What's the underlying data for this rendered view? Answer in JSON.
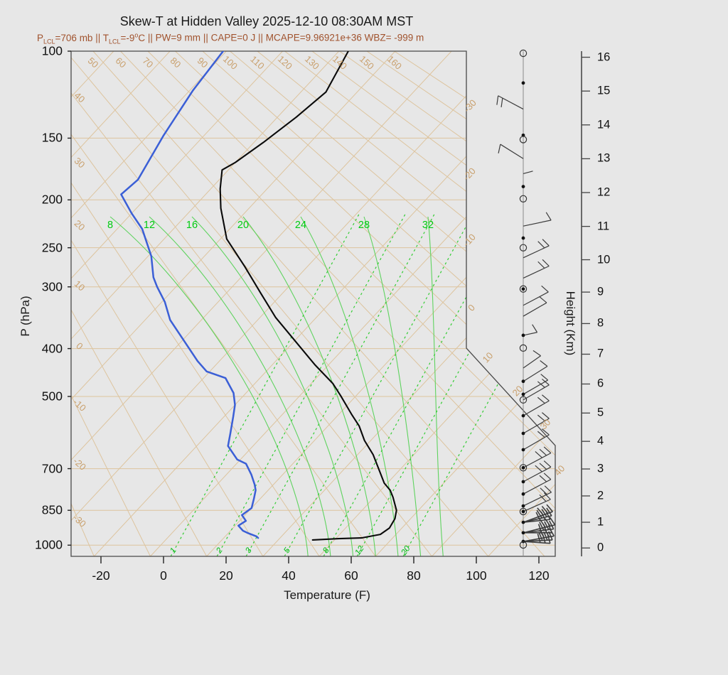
{
  "chart_data": {
    "type": "skewt-log-p-sounding",
    "title": "Skew-T at Hidden Valley 2025-12-10 08:30AM MST",
    "params": {
      "p_lcl_base": "P",
      "p_lcl_sub": "LCL",
      "p_lcl_val": "=706 mb",
      "sep": " || ",
      "t_lcl_base": "T",
      "t_lcl_sub": "LCL",
      "t_lcl_val": "=-9",
      "deg_sup": "o",
      "t_lcl_unit": "C",
      "pw": "PW=9 mm",
      "cape": "CAPE=0 J",
      "mcape_wbz": "MCAPE=9.96921e+36 WBZ= -999 m"
    },
    "axes": {
      "pressure": {
        "label": "P (hPa)",
        "units": "hPa",
        "ticks": [
          100,
          150,
          200,
          250,
          300,
          400,
          500,
          700,
          850,
          1000
        ],
        "range": [
          100,
          1050
        ],
        "scale": "log"
      },
      "temperature": {
        "label": "Temperature (F)",
        "units": "F",
        "ticks": [
          -20,
          0,
          20,
          40,
          60,
          80,
          100,
          120
        ]
      },
      "height": {
        "label": "Height (Km)",
        "units": "Km",
        "ticks": [
          0,
          1,
          2,
          3,
          4,
          5,
          6,
          7,
          8,
          9,
          10,
          11,
          12,
          13,
          14,
          15,
          16
        ]
      }
    },
    "grid": {
      "isotherm_step_c": 10,
      "isotherm_labels_right_c": [
        -30,
        -20,
        -10,
        0,
        10,
        20,
        30,
        40
      ],
      "dry_adiabat_labels_top_c": [
        50,
        60,
        70,
        80,
        90,
        100,
        110,
        120,
        130,
        140,
        150,
        160
      ],
      "dry_adiabat_labels_left_c": [
        40,
        30,
        20,
        10,
        0,
        -10,
        -20,
        -30
      ],
      "moist_adiabat_labels_c": [
        8,
        12,
        16,
        20,
        24,
        28,
        32
      ],
      "mixing_ratio_labels_gkg": [
        1,
        2,
        3,
        5,
        8,
        12,
        20
      ]
    },
    "temperature_curve_p_tf": [
      [
        100,
        -91
      ],
      [
        121,
        -86
      ],
      [
        136,
        -88
      ],
      [
        153,
        -91
      ],
      [
        168,
        -94
      ],
      [
        174,
        -96
      ],
      [
        190,
        -91
      ],
      [
        208,
        -85
      ],
      [
        240,
        -74
      ],
      [
        273,
        -60
      ],
      [
        309,
        -47
      ],
      [
        346,
        -35
      ],
      [
        395,
        -19
      ],
      [
        431,
        -8.5
      ],
      [
        471,
        3
      ],
      [
        498,
        9
      ],
      [
        543,
        18
      ],
      [
        574,
        24
      ],
      [
        614,
        30
      ],
      [
        656,
        37
      ],
      [
        701,
        43
      ],
      [
        749,
        49
      ],
      [
        774,
        53
      ],
      [
        800,
        56
      ],
      [
        850,
        61
      ],
      [
        884,
        63
      ],
      [
        923,
        64
      ],
      [
        951,
        63
      ],
      [
        967,
        58
      ],
      [
        970,
        51
      ],
      [
        976,
        43
      ]
    ],
    "dewpoint_curve_p_tf": [
      [
        100,
        -131
      ],
      [
        120,
        -129
      ],
      [
        148,
        -125
      ],
      [
        182,
        -120
      ],
      [
        195,
        -121
      ],
      [
        213,
        -112
      ],
      [
        229,
        -104
      ],
      [
        260,
        -93
      ],
      [
        287,
        -86
      ],
      [
        300,
        -82
      ],
      [
        322,
        -75
      ],
      [
        350,
        -68
      ],
      [
        380,
        -59
      ],
      [
        424,
        -47
      ],
      [
        445,
        -41
      ],
      [
        459,
        -33
      ],
      [
        492,
        -26
      ],
      [
        520,
        -22
      ],
      [
        550,
        -19
      ],
      [
        594,
        -15
      ],
      [
        630,
        -12
      ],
      [
        671,
        -5
      ],
      [
        684,
        -1
      ],
      [
        720,
        4
      ],
      [
        754,
        8
      ],
      [
        774,
        10
      ],
      [
        806,
        12
      ],
      [
        841,
        14
      ],
      [
        869,
        13
      ],
      [
        893,
        16
      ],
      [
        913,
        15
      ],
      [
        935,
        18
      ],
      [
        944,
        20
      ],
      [
        960,
        24
      ],
      [
        967,
        25
      ]
    ],
    "wind_barbs": [
      {
        "p": 131,
        "ang": -152,
        "ticks": 2,
        "len": 40
      },
      {
        "p": 165,
        "ang": -148,
        "ticks": 1,
        "len": 38
      },
      {
        "p": 177,
        "ang": -15,
        "ticks": 0,
        "len": 14
      },
      {
        "p": 226,
        "ang": -12,
        "ticks": 1,
        "len": 40
      },
      {
        "p": 262,
        "ang": -25,
        "ticks": 2,
        "len": 40
      },
      {
        "p": 288,
        "ang": -25,
        "ticks": 2,
        "len": 40
      },
      {
        "p": 327,
        "ang": -28,
        "ticks": 1,
        "len": 40
      },
      {
        "p": 344,
        "ang": -30,
        "ticks": 1,
        "len": 38
      },
      {
        "p": 376,
        "ang": -12,
        "ticks": 1,
        "len": 20
      },
      {
        "p": 438,
        "ang": -35,
        "ticks": 1,
        "len": 30
      },
      {
        "p": 466,
        "ang": -32,
        "ticks": 1,
        "len": 40
      },
      {
        "p": 495,
        "ang": -30,
        "ticks": 1,
        "len": 40
      },
      {
        "p": 508,
        "ang": -30,
        "ticks": 2,
        "len": 42
      },
      {
        "p": 547,
        "ang": -30,
        "ticks": 2,
        "len": 42
      },
      {
        "p": 594,
        "ang": -30,
        "ticks": 2,
        "len": 42
      },
      {
        "p": 641,
        "ang": -30,
        "ticks": 2,
        "len": 42
      },
      {
        "p": 697,
        "ang": -28,
        "ticks": 3,
        "len": 44
      },
      {
        "p": 744,
        "ang": -28,
        "ticks": 3,
        "len": 44
      },
      {
        "p": 788,
        "ang": -28,
        "ticks": 2,
        "len": 44
      },
      {
        "p": 833,
        "ang": -26,
        "ticks": 2,
        "len": 44
      },
      {
        "p": 855,
        "ang": -24,
        "ticks": 2,
        "len": 42
      },
      {
        "p": 899,
        "ang": -20,
        "ticks": 3,
        "len": 44,
        "heavy": true
      },
      {
        "p": 944,
        "ang": -14,
        "ticks": 3,
        "len": 46,
        "heavy": true
      },
      {
        "p": 983,
        "ang": -10,
        "ticks": 3,
        "len": 44,
        "heavy": true
      }
    ],
    "wind_symbols": [
      {
        "p": 101,
        "sym": "circle"
      },
      {
        "p": 116,
        "sym": "dot"
      },
      {
        "p": 148,
        "sym": "dot"
      },
      {
        "p": 151,
        "sym": "circle"
      },
      {
        "p": 188,
        "sym": "dot"
      },
      {
        "p": 199,
        "sym": "circle"
      },
      {
        "p": 239,
        "sym": "dot"
      },
      {
        "p": 250,
        "sym": "circle"
      },
      {
        "p": 303,
        "sym": "dotcircle"
      },
      {
        "p": 376,
        "sym": "dot"
      },
      {
        "p": 399,
        "sym": "circle"
      },
      {
        "p": 466,
        "sym": "dot"
      },
      {
        "p": 495,
        "sym": "dot"
      },
      {
        "p": 508,
        "sym": "circle"
      },
      {
        "p": 547,
        "sym": "dot"
      },
      {
        "p": 594,
        "sym": "dot"
      },
      {
        "p": 641,
        "sym": "dot"
      },
      {
        "p": 697,
        "sym": "dotcircle"
      },
      {
        "p": 744,
        "sym": "dot"
      },
      {
        "p": 788,
        "sym": "dot"
      },
      {
        "p": 833,
        "sym": "dot"
      },
      {
        "p": 855,
        "sym": "dotcircle"
      },
      {
        "p": 899,
        "sym": "dot"
      },
      {
        "p": 944,
        "sym": "dot"
      },
      {
        "p": 983,
        "sym": "dot"
      },
      {
        "p": 999,
        "sym": "circle"
      }
    ],
    "colors": {
      "background": "#e7e7e7",
      "grid_tan": "#ddc49e",
      "grid_label_tan": "#c9a06d",
      "moist_green": "#5fd35f",
      "mixing_green": "#33cc33",
      "green_label": "#00cc11",
      "temperature_black": "#0a0a0a",
      "dewpoint_blue": "#3b5fd6",
      "subtitle_red": "#a0522d",
      "frame_gray": "#4a4a4a",
      "barb_gray": "#3c3c3c"
    }
  }
}
